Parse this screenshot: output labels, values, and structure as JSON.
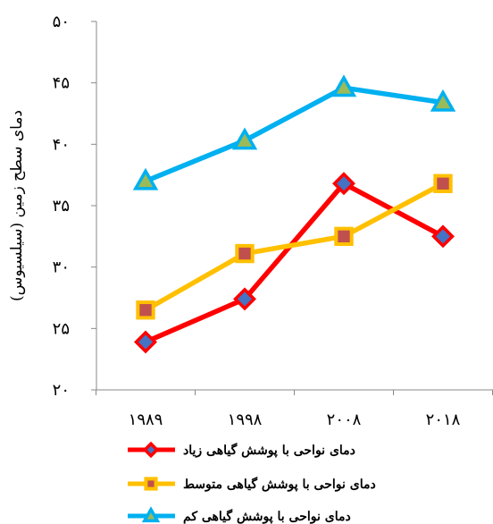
{
  "chart_data": {
    "type": "line",
    "categories": [
      "۱۹۸۹",
      "۱۹۹۸",
      "۲۰۰۸",
      "۲۰۱۸"
    ],
    "ylabel": "دمای سطح زمین (سیلسیوس)",
    "ylim": [
      20,
      50
    ],
    "yticks": [
      {
        "value": 20,
        "label": "۲۰"
      },
      {
        "value": 25,
        "label": "۲۵"
      },
      {
        "value": 30,
        "label": "۳۰"
      },
      {
        "value": 35,
        "label": "۳۵"
      },
      {
        "value": 40,
        "label": "۴۰"
      },
      {
        "value": 45,
        "label": "۴۵"
      },
      {
        "value": 50,
        "label": "۵۰"
      }
    ],
    "grid": false,
    "legend_position": "bottom",
    "series": [
      {
        "name": "دمای نواحی با پوشش گیاهی زیاد",
        "values": [
          23.9,
          27.4,
          36.8,
          32.5
        ],
        "color": "#ff0000",
        "marker": "diamond",
        "marker_fill": "#4472c4"
      },
      {
        "name": "دمای نواحی با پوشش گیاهی متوسط",
        "values": [
          26.5,
          31.1,
          32.5,
          36.8
        ],
        "color": "#ffc000",
        "marker": "square",
        "marker_fill": "#c0504d"
      },
      {
        "name": "دمای نواحی با پوشش گیاهی کم",
        "values": [
          37.0,
          40.3,
          44.6,
          43.4
        ],
        "color": "#00b0f0",
        "marker": "triangle",
        "marker_fill": "#9bbb59"
      }
    ]
  }
}
